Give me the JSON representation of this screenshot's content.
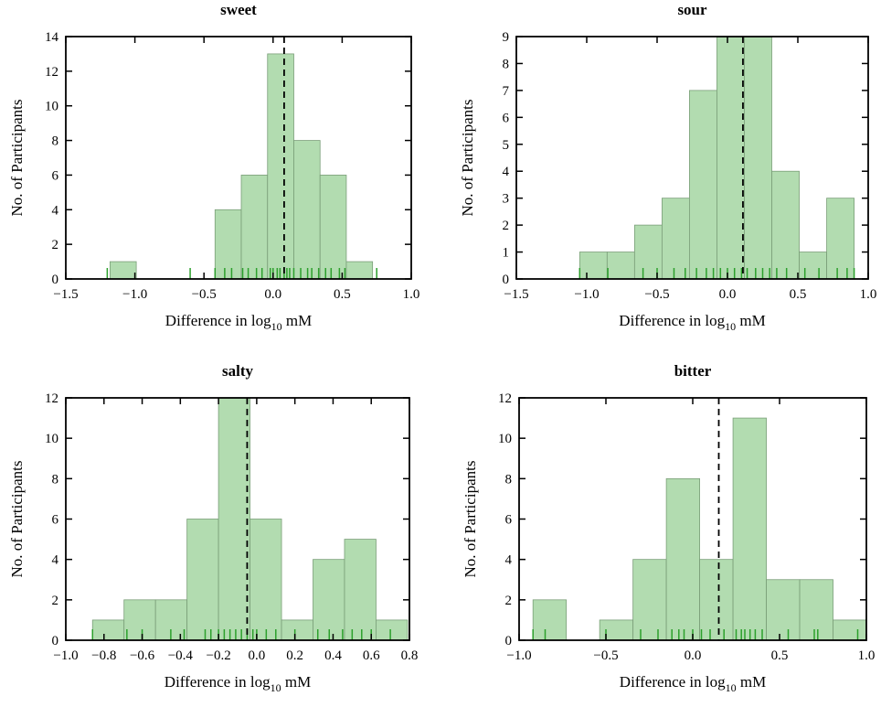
{
  "chart_data": [
    {
      "type": "histogram",
      "title": "sweet",
      "ylabel": "No. of Participants",
      "xlabel": {
        "text": "Difference in log",
        "sub": "10",
        "unit": " mM"
      },
      "bins": [
        -1.18,
        -0.99,
        -0.8,
        -0.61,
        -0.42,
        -0.23,
        -0.04,
        0.15,
        0.34,
        0.53,
        0.72
      ],
      "counts": [
        1,
        0,
        0,
        0,
        4,
        6,
        13,
        8,
        6,
        1
      ],
      "rug": [
        -1.2,
        -0.6,
        -0.42,
        -0.35,
        -0.3,
        -0.22,
        -0.18,
        -0.12,
        -0.08,
        -0.02,
        0.0,
        0.03,
        0.05,
        0.08,
        0.1,
        0.12,
        0.15,
        0.2,
        0.25,
        0.28,
        0.33,
        0.38,
        0.42,
        0.48,
        0.52,
        0.75
      ],
      "vline": 0.08,
      "color": "#b2dcb0",
      "rug_color": "#2ca02c",
      "xlim": [
        -1.5,
        1.0
      ],
      "xticks": [
        {
          "value": -1.5,
          "label": "−1.5"
        },
        {
          "value": -1.0,
          "label": "−1.0"
        },
        {
          "value": -0.5,
          "label": "−0.5"
        },
        {
          "value": 0,
          "label": "0.0"
        },
        0.5,
        {
          "value": 1.0,
          "label": "1.0"
        }
      ],
      "ylim": [
        0,
        14
      ],
      "yticks": [
        0,
        2,
        4,
        6,
        8,
        10,
        12,
        14
      ]
    },
    {
      "type": "histogram",
      "title": "sour",
      "ylabel": "No. of Participants",
      "xlabel": {
        "text": "Difference in log",
        "sub": "10",
        "unit": " mM"
      },
      "bins": [
        -1.05,
        -0.855,
        -0.66,
        -0.465,
        -0.27,
        -0.075,
        0.12,
        0.315,
        0.51,
        0.705,
        0.9
      ],
      "counts": [
        1,
        1,
        2,
        3,
        7,
        9,
        9,
        4,
        1,
        3
      ],
      "rug": [
        -1.05,
        -0.85,
        -0.6,
        -0.5,
        -0.38,
        -0.3,
        -0.22,
        -0.15,
        -0.1,
        -0.05,
        0.0,
        0.05,
        0.1,
        0.14,
        0.2,
        0.25,
        0.3,
        0.35,
        0.42,
        0.55,
        0.65,
        0.78,
        0.85,
        0.9
      ],
      "vline": 0.11,
      "color": "#b2dcb0",
      "rug_color": "#2ca02c",
      "xlim": [
        -1.5,
        1.0
      ],
      "xticks": [
        {
          "value": -1.5,
          "label": "−1.5"
        },
        {
          "value": -1.0,
          "label": "−1.0"
        },
        {
          "value": -0.5,
          "label": "−0.5"
        },
        {
          "value": 0,
          "label": "0.0"
        },
        0.5,
        {
          "value": 1.0,
          "label": "1.0"
        }
      ],
      "ylim": [
        0,
        9
      ],
      "yticks": [
        0,
        1,
        2,
        3,
        4,
        5,
        6,
        7,
        8,
        9
      ]
    },
    {
      "type": "histogram",
      "title": "salty",
      "ylabel": "No. of Participants",
      "xlabel": {
        "text": "Difference in log",
        "sub": "10",
        "unit": " mM"
      },
      "bins": [
        -0.86,
        -0.695,
        -0.53,
        -0.365,
        -0.2,
        -0.035,
        0.13,
        0.295,
        0.46,
        0.625,
        0.79
      ],
      "counts": [
        1,
        2,
        2,
        6,
        12,
        6,
        1,
        4,
        5,
        1
      ],
      "rug": [
        -0.86,
        -0.68,
        -0.6,
        -0.45,
        -0.38,
        -0.27,
        -0.24,
        -0.2,
        -0.17,
        -0.14,
        -0.11,
        -0.08,
        -0.05,
        -0.02,
        0.0,
        0.05,
        0.1,
        0.2,
        0.32,
        0.38,
        0.45,
        0.5,
        0.55,
        0.6,
        0.7
      ],
      "vline": -0.05,
      "color": "#b2dcb0",
      "rug_color": "#2ca02c",
      "xlim": [
        -1.0,
        0.8
      ],
      "xticks": [
        {
          "value": -1.0,
          "label": "−1.0"
        },
        {
          "value": -0.8,
          "label": "−0.8"
        },
        {
          "value": -0.6,
          "label": "−0.6"
        },
        {
          "value": -0.4,
          "label": "−0.4"
        },
        {
          "value": -0.2,
          "label": "−0.2"
        },
        {
          "value": 0,
          "label": "0.0"
        },
        0.2,
        0.4,
        0.6,
        0.8
      ],
      "ylim": [
        0,
        12
      ],
      "yticks": [
        0,
        2,
        4,
        6,
        8,
        10,
        12
      ]
    },
    {
      "type": "histogram",
      "title": "bitter",
      "ylabel": "No. of Participants",
      "xlabel": {
        "text": "Difference in log",
        "sub": "10",
        "unit": " mM"
      },
      "bins": [
        -0.92,
        -0.728,
        -0.536,
        -0.344,
        -0.152,
        0.04,
        0.232,
        0.424,
        0.616,
        0.808,
        1.0
      ],
      "counts": [
        2,
        0,
        1,
        4,
        8,
        4,
        11,
        3,
        3,
        1
      ],
      "rug": [
        -0.92,
        -0.85,
        -0.5,
        -0.3,
        -0.2,
        -0.12,
        -0.08,
        -0.05,
        0.0,
        0.05,
        0.1,
        0.18,
        0.25,
        0.28,
        0.3,
        0.33,
        0.36,
        0.4,
        0.55,
        0.7,
        0.72,
        0.95
      ],
      "vline": 0.15,
      "color": "#b2dcb0",
      "rug_color": "#2ca02c",
      "xlim": [
        -1.0,
        1.0
      ],
      "xticks": [
        {
          "value": -1.0,
          "label": "−1.0"
        },
        {
          "value": -0.5,
          "label": "−0.5"
        },
        {
          "value": 0,
          "label": "0.0"
        },
        0.5,
        {
          "value": 1.0,
          "label": "1.0"
        }
      ],
      "ylim": [
        0,
        12
      ],
      "yticks": [
        0,
        2,
        4,
        6,
        8,
        10,
        12
      ]
    }
  ]
}
